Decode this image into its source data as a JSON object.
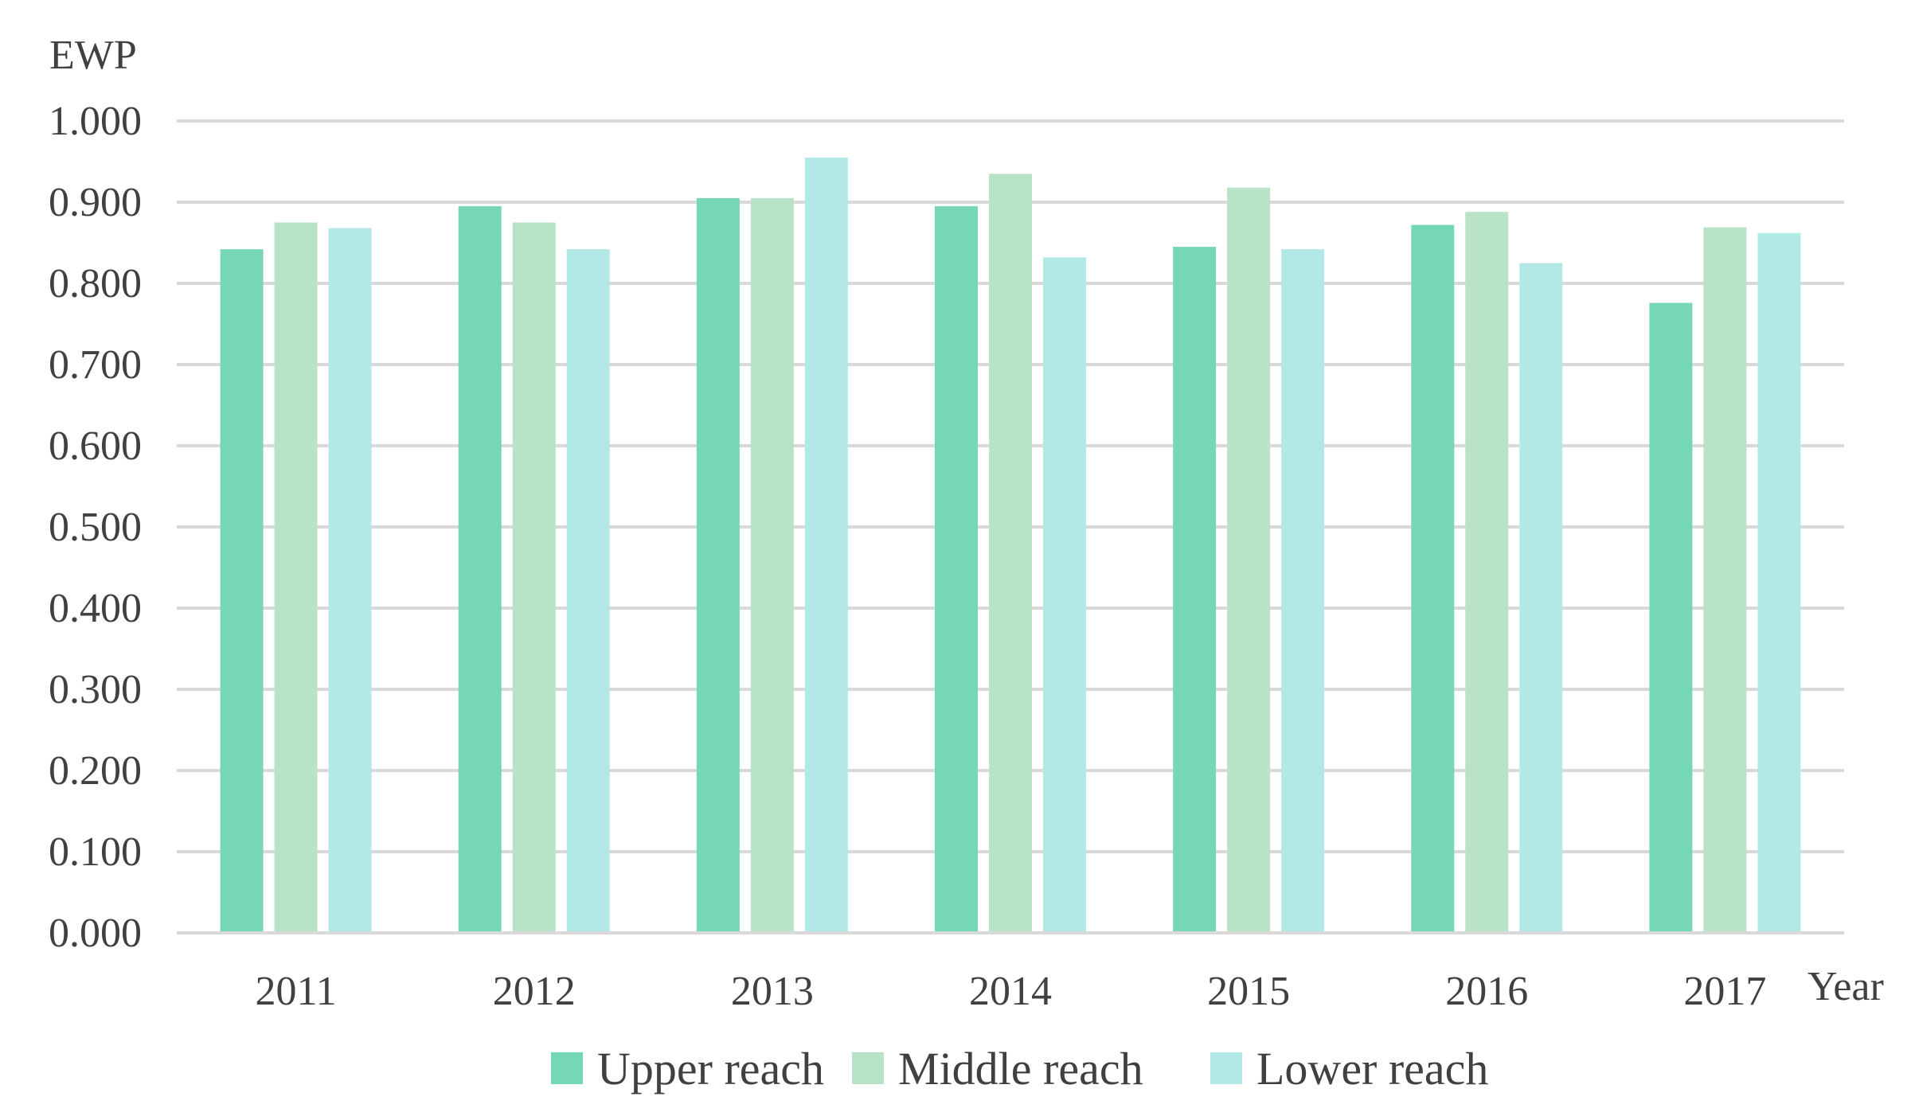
{
  "chart_data": {
    "type": "bar",
    "title": "",
    "xlabel": "Year",
    "ylabel": "EWP",
    "categories": [
      "2011",
      "2012",
      "2013",
      "2014",
      "2015",
      "2016",
      "2017"
    ],
    "series": [
      {
        "name": "Upper reach",
        "color": "#76d7b4",
        "values": [
          0.842,
          0.895,
          0.905,
          0.895,
          0.845,
          0.872,
          0.776
        ]
      },
      {
        "name": "Middle reach",
        "color": "#b8e3c6",
        "values": [
          0.875,
          0.875,
          0.905,
          0.935,
          0.918,
          0.888,
          0.869
        ]
      },
      {
        "name": "Lower reach",
        "color": "#b2e8e6",
        "values": [
          0.868,
          0.842,
          0.955,
          0.832,
          0.842,
          0.825,
          0.862
        ]
      }
    ],
    "yticks": [
      "0.000",
      "0.100",
      "0.200",
      "0.300",
      "0.400",
      "0.500",
      "0.600",
      "0.700",
      "0.800",
      "0.900",
      "1.000"
    ],
    "ylim": [
      0,
      1
    ],
    "grid": true,
    "legend_position": "bottom"
  }
}
